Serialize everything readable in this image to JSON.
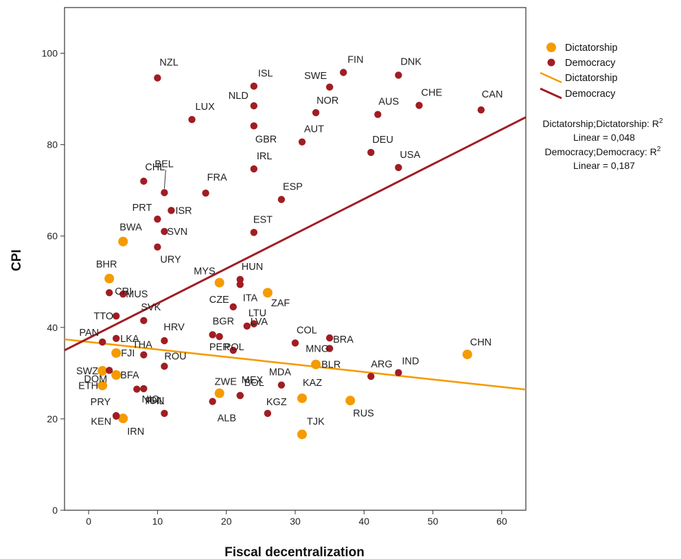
{
  "chart_data": {
    "type": "scatter",
    "title": "",
    "xlabel": "Fiscal decentralization",
    "ylabel": "CPI",
    "xlim": [
      -3.5,
      63.5
    ],
    "ylim": [
      0,
      110
    ],
    "xticks": [
      0,
      10,
      20,
      30,
      40,
      50,
      60
    ],
    "yticks": [
      0,
      20,
      40,
      60,
      80,
      100
    ],
    "grid": false,
    "legend_position": "right",
    "colors": {
      "Dictatorship": "#f59b00",
      "Democracy": "#a01d23"
    },
    "legend": {
      "markers": [
        {
          "series": "Dictatorship",
          "label": "Dictatorship"
        },
        {
          "series": "Democracy",
          "label": "Democracy"
        }
      ],
      "lines": [
        {
          "series": "Dictatorship",
          "label": "Dictatorship"
        },
        {
          "series": "Democracy",
          "label": "Democracy"
        }
      ]
    },
    "fit_stats": [
      {
        "line1_pre": "Dictatorship;Dictatorship: R",
        "sup": "2",
        "line2": "Linear = 0,048"
      },
      {
        "line1_pre": "Democracy;Democracy: R",
        "sup": "2",
        "line2": "Linear = 0,187"
      }
    ],
    "fit_lines": [
      {
        "series": "Dictatorship",
        "x": [
          -3.5,
          63.5
        ],
        "y": [
          37.4,
          26.4
        ]
      },
      {
        "series": "Democracy",
        "x": [
          -3.5,
          63.5
        ],
        "y": [
          35.0,
          86.0
        ]
      }
    ],
    "series": [
      {
        "name": "Dictatorship",
        "points": [
          {
            "label": "BWA",
            "x": 5,
            "y": 58.8
          },
          {
            "label": "BHR",
            "x": 3,
            "y": 50.7
          },
          {
            "label": "MYS",
            "x": 19,
            "y": 49.8
          },
          {
            "label": "ZAF",
            "x": 26,
            "y": 47.6
          },
          {
            "label": "FJI",
            "x": 4,
            "y": 34.4
          },
          {
            "label": "SWZ",
            "x": 2,
            "y": 30.5
          },
          {
            "label": "BFA",
            "x": 4,
            "y": 29.6
          },
          {
            "label": "ETH",
            "x": 2,
            "y": 27.3
          },
          {
            "label": "IRN",
            "x": 5,
            "y": 20.1
          },
          {
            "label": "BLR",
            "x": 33,
            "y": 31.9
          },
          {
            "label": "ZWE",
            "x": 19,
            "y": 25.6
          },
          {
            "label": "KAZ",
            "x": 31,
            "y": 24.5
          },
          {
            "label": "RUS",
            "x": 38,
            "y": 24.0
          },
          {
            "label": "TJK",
            "x": 31,
            "y": 16.6
          },
          {
            "label": "CHN",
            "x": 55,
            "y": 34.1
          }
        ]
      },
      {
        "name": "Democracy",
        "points": [
          {
            "label": "NZL",
            "x": 10,
            "y": 94.6
          },
          {
            "label": "ISL",
            "x": 24,
            "y": 92.8
          },
          {
            "label": "NLD",
            "x": 24,
            "y": 88.5
          },
          {
            "label": "LUX",
            "x": 15,
            "y": 85.5
          },
          {
            "label": "GBR",
            "x": 24,
            "y": 84.1
          },
          {
            "label": "SWE",
            "x": 35,
            "y": 92.6
          },
          {
            "label": "FIN",
            "x": 37,
            "y": 95.8
          },
          {
            "label": "NOR",
            "x": 33,
            "y": 87.0
          },
          {
            "label": "AUT",
            "x": 31,
            "y": 80.6
          },
          {
            "label": "DNK",
            "x": 45,
            "y": 95.2
          },
          {
            "label": "CHE",
            "x": 48,
            "y": 88.6
          },
          {
            "label": "AUS",
            "x": 42,
            "y": 86.6
          },
          {
            "label": "CAN",
            "x": 57,
            "y": 87.6
          },
          {
            "label": "DEU",
            "x": 41,
            "y": 78.3
          },
          {
            "label": "USA",
            "x": 45,
            "y": 75.0
          },
          {
            "label": "IRL",
            "x": 24,
            "y": 74.7
          },
          {
            "label": "BEL",
            "x": 11,
            "y": 69.5
          },
          {
            "label": "CHL",
            "x": 8,
            "y": 72.0
          },
          {
            "label": "FRA",
            "x": 17,
            "y": 69.4
          },
          {
            "label": "ESP",
            "x": 28,
            "y": 68.0
          },
          {
            "label": "ISR",
            "x": 12,
            "y": 65.6
          },
          {
            "label": "PRT",
            "x": 10,
            "y": 63.7
          },
          {
            "label": "SVN",
            "x": 11,
            "y": 61.0
          },
          {
            "label": "URY",
            "x": 10,
            "y": 57.6
          },
          {
            "label": "EST",
            "x": 24,
            "y": 60.8
          },
          {
            "label": "HUN",
            "x": 22,
            "y": 50.5
          },
          {
            "label": "ITA",
            "x": 22,
            "y": 49.4
          },
          {
            "label": "CZE",
            "x": 21,
            "y": 44.5
          },
          {
            "label": "CRI",
            "x": 3,
            "y": 47.6
          },
          {
            "label": "MUS",
            "x": 5,
            "y": 47.3
          },
          {
            "label": "SVK",
            "x": 8,
            "y": 41.5
          },
          {
            "label": "TTO",
            "x": 4,
            "y": 42.5
          },
          {
            "label": "LTU",
            "x": 24,
            "y": 40.8
          },
          {
            "label": "LVA",
            "x": 23,
            "y": 40.3
          },
          {
            "label": "LKA",
            "x": 4,
            "y": 37.6
          },
          {
            "label": "PAN",
            "x": 2,
            "y": 36.8
          },
          {
            "label": "HRV",
            "x": 11,
            "y": 37.1
          },
          {
            "label": "BGR",
            "x": 18,
            "y": 38.4
          },
          {
            "label": "POL",
            "x": 19,
            "y": 38.0
          },
          {
            "label": "COL",
            "x": 30,
            "y": 36.6
          },
          {
            "label": "MNG",
            "x": 35,
            "y": 35.4
          },
          {
            "label": "BRA",
            "x": 35,
            "y": 37.7
          },
          {
            "label": "THA",
            "x": 8,
            "y": 34.0
          },
          {
            "label": "DOM",
            "x": 3,
            "y": 30.6
          },
          {
            "label": "ROU",
            "x": 11,
            "y": 31.5
          },
          {
            "label": "PER",
            "x": 21,
            "y": 35.0
          },
          {
            "label": "MEX",
            "x": 22,
            "y": 25.1
          },
          {
            "label": "MDA",
            "x": 28,
            "y": 27.4
          },
          {
            "label": "ARG",
            "x": 41,
            "y": 29.3
          },
          {
            "label": "IND",
            "x": 45,
            "y": 30.1
          },
          {
            "label": "BOL",
            "x": 22,
            "y": 25.1
          },
          {
            "label": "PHL",
            "x": 7,
            "y": 26.5
          },
          {
            "label": "IDN",
            "x": 8,
            "y": 26.6
          },
          {
            "label": "ALB",
            "x": 18,
            "y": 23.8
          },
          {
            "label": "KGZ",
            "x": 26,
            "y": 21.2
          },
          {
            "label": "NIC",
            "x": 11,
            "y": 21.2
          },
          {
            "label": "PRY",
            "x": 4,
            "y": 20.6
          },
          {
            "label": "KEN",
            "x": 4,
            "y": 20.7
          }
        ]
      }
    ]
  }
}
